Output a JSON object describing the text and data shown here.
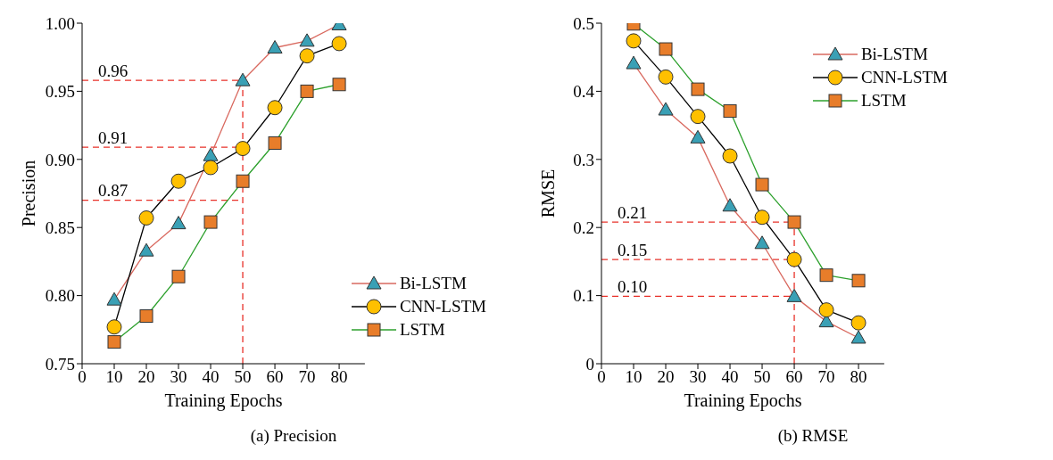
{
  "chart_data": [
    {
      "type": "line",
      "xlabel": "Training Epochs",
      "ylabel": "Precision",
      "annotations": [
        "(a) Precision"
      ],
      "x": [
        10,
        20,
        30,
        40,
        50,
        60,
        70,
        80
      ],
      "xlim": [
        0,
        88
      ],
      "xticks": [
        0,
        10,
        20,
        30,
        40,
        50,
        60,
        70,
        80
      ],
      "ylim": [
        0.75,
        1.0
      ],
      "yticks": [
        {
          "value": 0.75,
          "label": "0.75"
        },
        {
          "value": 0.8,
          "label": "0.80"
        },
        {
          "value": 0.85,
          "label": "0.85"
        },
        {
          "value": 0.9,
          "label": "0.90"
        },
        {
          "value": 0.95,
          "label": "0.95"
        },
        {
          "value": 1.0,
          "label": "1.00"
        }
      ],
      "legend": "bottom right",
      "series": [
        {
          "name": "Bi-LSTM",
          "color": "#d9695f",
          "marker": "triangle",
          "colors": [
            "#3aa0b5",
            "#3aa0b5",
            "#3aa0b5",
            "#3aa0b5",
            "#3aa0b5",
            "#3aa0b5",
            "#3aa0b5",
            "#3aa0b5"
          ],
          "values": [
            0.797,
            0.833,
            0.853,
            0.903,
            0.958,
            0.982,
            0.987,
            0.999
          ]
        },
        {
          "name": "CNN-LSTM",
          "color": "#000000",
          "marker": "circle",
          "colors": [
            "#ffc000",
            "#ffc000",
            "#ffc000",
            "#ffc000",
            "#ffc000",
            "#ffc000",
            "#ffc000",
            "#ffc000"
          ],
          "values": [
            0.777,
            0.857,
            0.884,
            0.894,
            0.908,
            0.938,
            0.976,
            0.985
          ]
        },
        {
          "name": "LSTM",
          "color": "#2ca02c",
          "marker": "square",
          "colors": [
            "#e87d2a",
            "#e87d2a",
            "#e87d2a",
            "#e87d2a",
            "#e87d2a",
            "#e87d2a",
            "#e87d2a",
            "#e87d2a"
          ],
          "values": [
            0.766,
            0.785,
            0.814,
            0.854,
            0.884,
            0.912,
            0.95,
            0.955
          ]
        }
      ],
      "ref_lines": [
        {
          "axis": "x",
          "value": 50,
          "label": null,
          "color": "#e8322a",
          "line_style": "dashed"
        },
        {
          "axis": "y",
          "value": 0.958,
          "label": "0.96",
          "color": "#e8322a",
          "line_style": "dashed"
        },
        {
          "axis": "y",
          "value": 0.909,
          "label": "0.91",
          "color": "#e8322a",
          "line_style": "dashed"
        },
        {
          "axis": "y",
          "value": 0.87,
          "label": "0.87",
          "color": "#e8322a",
          "line_style": "dashed"
        }
      ]
    },
    {
      "type": "line",
      "xlabel": "Training Epochs",
      "ylabel": "RMSE",
      "annotations": [
        "(b) RMSE"
      ],
      "x": [
        10,
        20,
        30,
        40,
        50,
        60,
        70,
        80
      ],
      "xlim": [
        0,
        88
      ],
      "xticks": [
        0,
        10,
        20,
        30,
        40,
        50,
        60,
        70,
        80
      ],
      "ylim": [
        0,
        0.5
      ],
      "yticks": [
        0,
        0.1,
        0.2,
        0.3,
        0.4,
        0.5
      ],
      "legend": "top right",
      "series": [
        {
          "name": "Bi-LSTM",
          "color": "#d9695f",
          "marker": "triangle",
          "colors": [
            "#3aa0b5",
            "#3aa0b5",
            "#3aa0b5",
            "#3aa0b5",
            "#3aa0b5",
            "#3aa0b5",
            "#3aa0b5",
            "#3aa0b5"
          ],
          "values": [
            0.441,
            0.373,
            0.332,
            0.232,
            0.177,
            0.099,
            0.062,
            0.038
          ]
        },
        {
          "name": "CNN-LSTM",
          "color": "#000000",
          "marker": "circle",
          "colors": [
            "#ffc000",
            "#ffc000",
            "#ffc000",
            "#ffc000",
            "#ffc000",
            "#ffc000",
            "#ffc000",
            "#ffc000"
          ],
          "values": [
            0.474,
            0.421,
            0.363,
            0.305,
            0.215,
            0.153,
            0.079,
            0.06
          ]
        },
        {
          "name": "LSTM",
          "color": "#2ca02c",
          "marker": "square",
          "colors": [
            "#e87d2a",
            "#e87d2a",
            "#e87d2a",
            "#e87d2a",
            "#e87d2a",
            "#e87d2a",
            "#e87d2a",
            "#e87d2a"
          ],
          "values": [
            0.499,
            0.462,
            0.403,
            0.371,
            0.263,
            0.208,
            0.13,
            0.122
          ]
        }
      ],
      "ref_lines": [
        {
          "axis": "x",
          "value": 60,
          "label": null,
          "color": "#e8322a",
          "line_style": "dashed"
        },
        {
          "axis": "y",
          "value": 0.208,
          "label": "0.21",
          "color": "#e8322a",
          "line_style": "dashed"
        },
        {
          "axis": "y",
          "value": 0.153,
          "label": "0.15",
          "color": "#e8322a",
          "line_style": "dashed"
        },
        {
          "axis": "y",
          "value": 0.099,
          "label": "0.10",
          "color": "#e8322a",
          "line_style": "dashed"
        }
      ]
    }
  ]
}
